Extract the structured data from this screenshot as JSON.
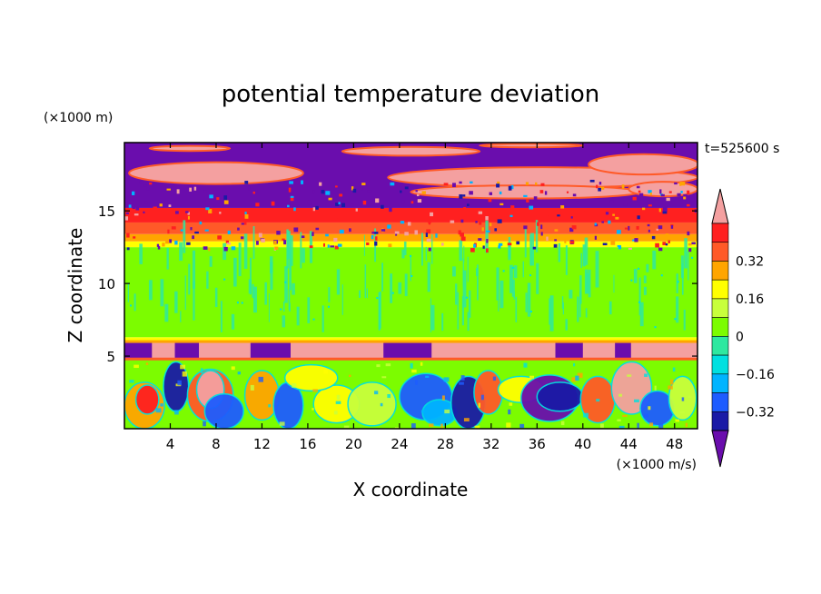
{
  "chart_data": {
    "type": "heatmap",
    "title": "potential temperature deviation",
    "xlabel": "X coordinate",
    "ylabel": "Z coordinate",
    "x_unit": "(×1000 m/s)",
    "y_unit": "(×1000 m)",
    "time_label": "t=525600 s",
    "xlim": [
      0,
      50
    ],
    "ylim": [
      0,
      19.7
    ],
    "x_ticks": [
      4,
      8,
      12,
      16,
      20,
      24,
      28,
      32,
      36,
      40,
      44,
      48
    ],
    "y_ticks": [
      5,
      10,
      15
    ],
    "colorbar": {
      "tick_labels": [
        "0.32",
        "0.16",
        "0",
        "−0.16",
        "−0.32"
      ],
      "tick_values": [
        0.32,
        0.16,
        0,
        -0.16,
        -0.32
      ],
      "levels": [
        -0.4,
        -0.32,
        -0.24,
        -0.16,
        -0.08,
        0,
        0.08,
        0.16,
        0.24,
        0.32,
        0.4
      ],
      "colors": [
        "#6a0dad",
        "#1a1aa6",
        "#1e5cff",
        "#00b4ff",
        "#00e0e0",
        "#2ee8a0",
        "#7cfc00",
        "#c8ff3c",
        "#ffff00",
        "#ffa500",
        "#ff5a28",
        "#ff2020",
        "#f4a0a0"
      ]
    },
    "layers": [
      {
        "z_range": [
          0,
          4.8
        ],
        "field": "turbulent mixed positive/negative anomalies"
      },
      {
        "z_range": [
          4.8,
          6.0
        ],
        "field": "alternating pink (>0.4) and purple (<-0.4) band"
      },
      {
        "z_range": [
          6.0,
          12.5
        ],
        "field": "near zero, 0 to 0.08"
      },
      {
        "z_range": [
          12.5,
          15.0
        ],
        "field": "positive gradient 0.16 to 0.4"
      },
      {
        "z_range": [
          15.0,
          19.7
        ],
        "field": "alternating pink (>0.4) and purple (<-0.4) streaks"
      }
    ]
  }
}
